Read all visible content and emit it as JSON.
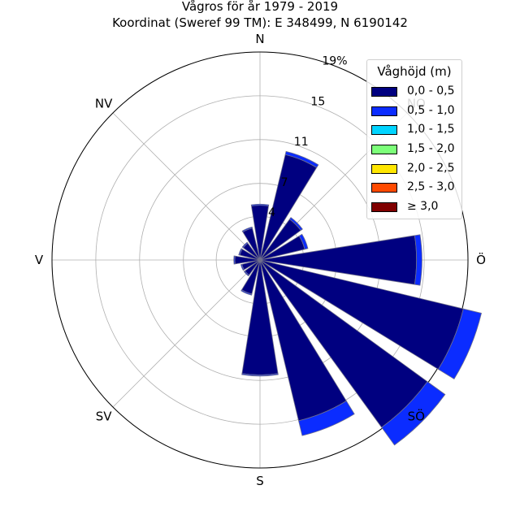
{
  "chart_data": {
    "type": "windrose",
    "title": "Vågros för år 1979 - 2019",
    "subtitle": "Koordinat (Sweref 99 TM): E 348499, N 6190142",
    "direction_labels": [
      "N",
      "NO",
      "Ö",
      "SÖ",
      "S",
      "SV",
      "V",
      "NV"
    ],
    "radial_ticks": [
      {
        "value": 4,
        "label": "4"
      },
      {
        "value": 7,
        "label": "7"
      },
      {
        "value": 11,
        "label": "11"
      },
      {
        "value": 15,
        "label": "15"
      },
      {
        "value": 19,
        "label": "19%"
      }
    ],
    "rmax": 19,
    "sector_width_deg": 22.5,
    "legend": {
      "title": "Våghöjd (m)",
      "entries": [
        {
          "label": "0,0 - 0,5",
          "color": "#000080"
        },
        {
          "label": "0,5 - 1,0",
          "color": "#0b2cff"
        },
        {
          "label": "1,0 - 1,5",
          "color": "#00d4ff"
        },
        {
          "label": "1,5 - 2,0",
          "color": "#7cff79"
        },
        {
          "label": "2,0 - 2,5",
          "color": "#ffe600"
        },
        {
          "label": "2,5 - 3,0",
          "color": "#ff4a00"
        },
        {
          "label": "≥ 3,0",
          "color": "#800000"
        }
      ]
    },
    "series": [
      {
        "name": "0,0 - 0,5",
        "color": "#000080",
        "values": [
          5.0,
          9.9,
          4.6,
          4.2,
          14.3,
          19.1,
          18.9,
          15.1,
          10.5,
          3.2,
          1.7,
          1.7,
          2.3,
          1.9,
          1.9,
          3.0
        ]
      },
      {
        "name": "0,5 - 1,0",
        "color": "#0b2cff",
        "values": [
          0.1,
          0.3,
          0.2,
          0.3,
          0.5,
          1.7,
          2.0,
          1.4,
          0.1,
          0.1,
          0.1,
          0.1,
          0.1,
          0.1,
          0.1,
          0.1
        ]
      }
    ]
  }
}
